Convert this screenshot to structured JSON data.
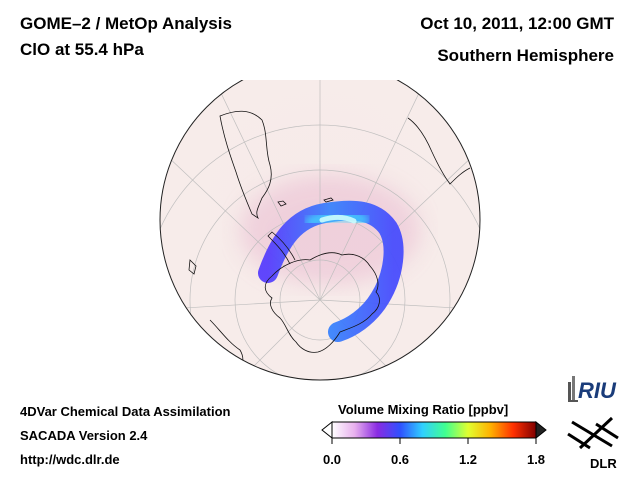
{
  "header": {
    "product_line1": "GOME–2 / MetOp Analysis",
    "product_line2": "ClO at 55.4 hPa",
    "datetime": "Oct 10, 2011, 12:00 GMT",
    "region": "Southern Hemisphere"
  },
  "footer": {
    "system": "4DVar Chemical Data Assimilation",
    "version": "SACADA Version 2.4",
    "url": "http://wdc.dlr.de"
  },
  "colorbar": {
    "title": "Volume Mixing Ratio [ppbv]",
    "min": 0.0,
    "max": 1.8,
    "ticks": [
      "0.0",
      "0.6",
      "1.2",
      "1.8"
    ],
    "colors": [
      "#ffffff",
      "#e8b0ee",
      "#8a2be2",
      "#3050ff",
      "#30d0ff",
      "#40ff90",
      "#e0ff30",
      "#ffb000",
      "#ff3000",
      "#800000"
    ]
  },
  "map": {
    "projection": "orthographic",
    "hemisphere": "south",
    "background_color": "#f7ecea",
    "coast_color": "#000000",
    "grid_color": "#bbbbbb",
    "clo_peak_ppbv": 1.0
  },
  "logos": {
    "riu": "RIU",
    "dlr": "DLR"
  }
}
